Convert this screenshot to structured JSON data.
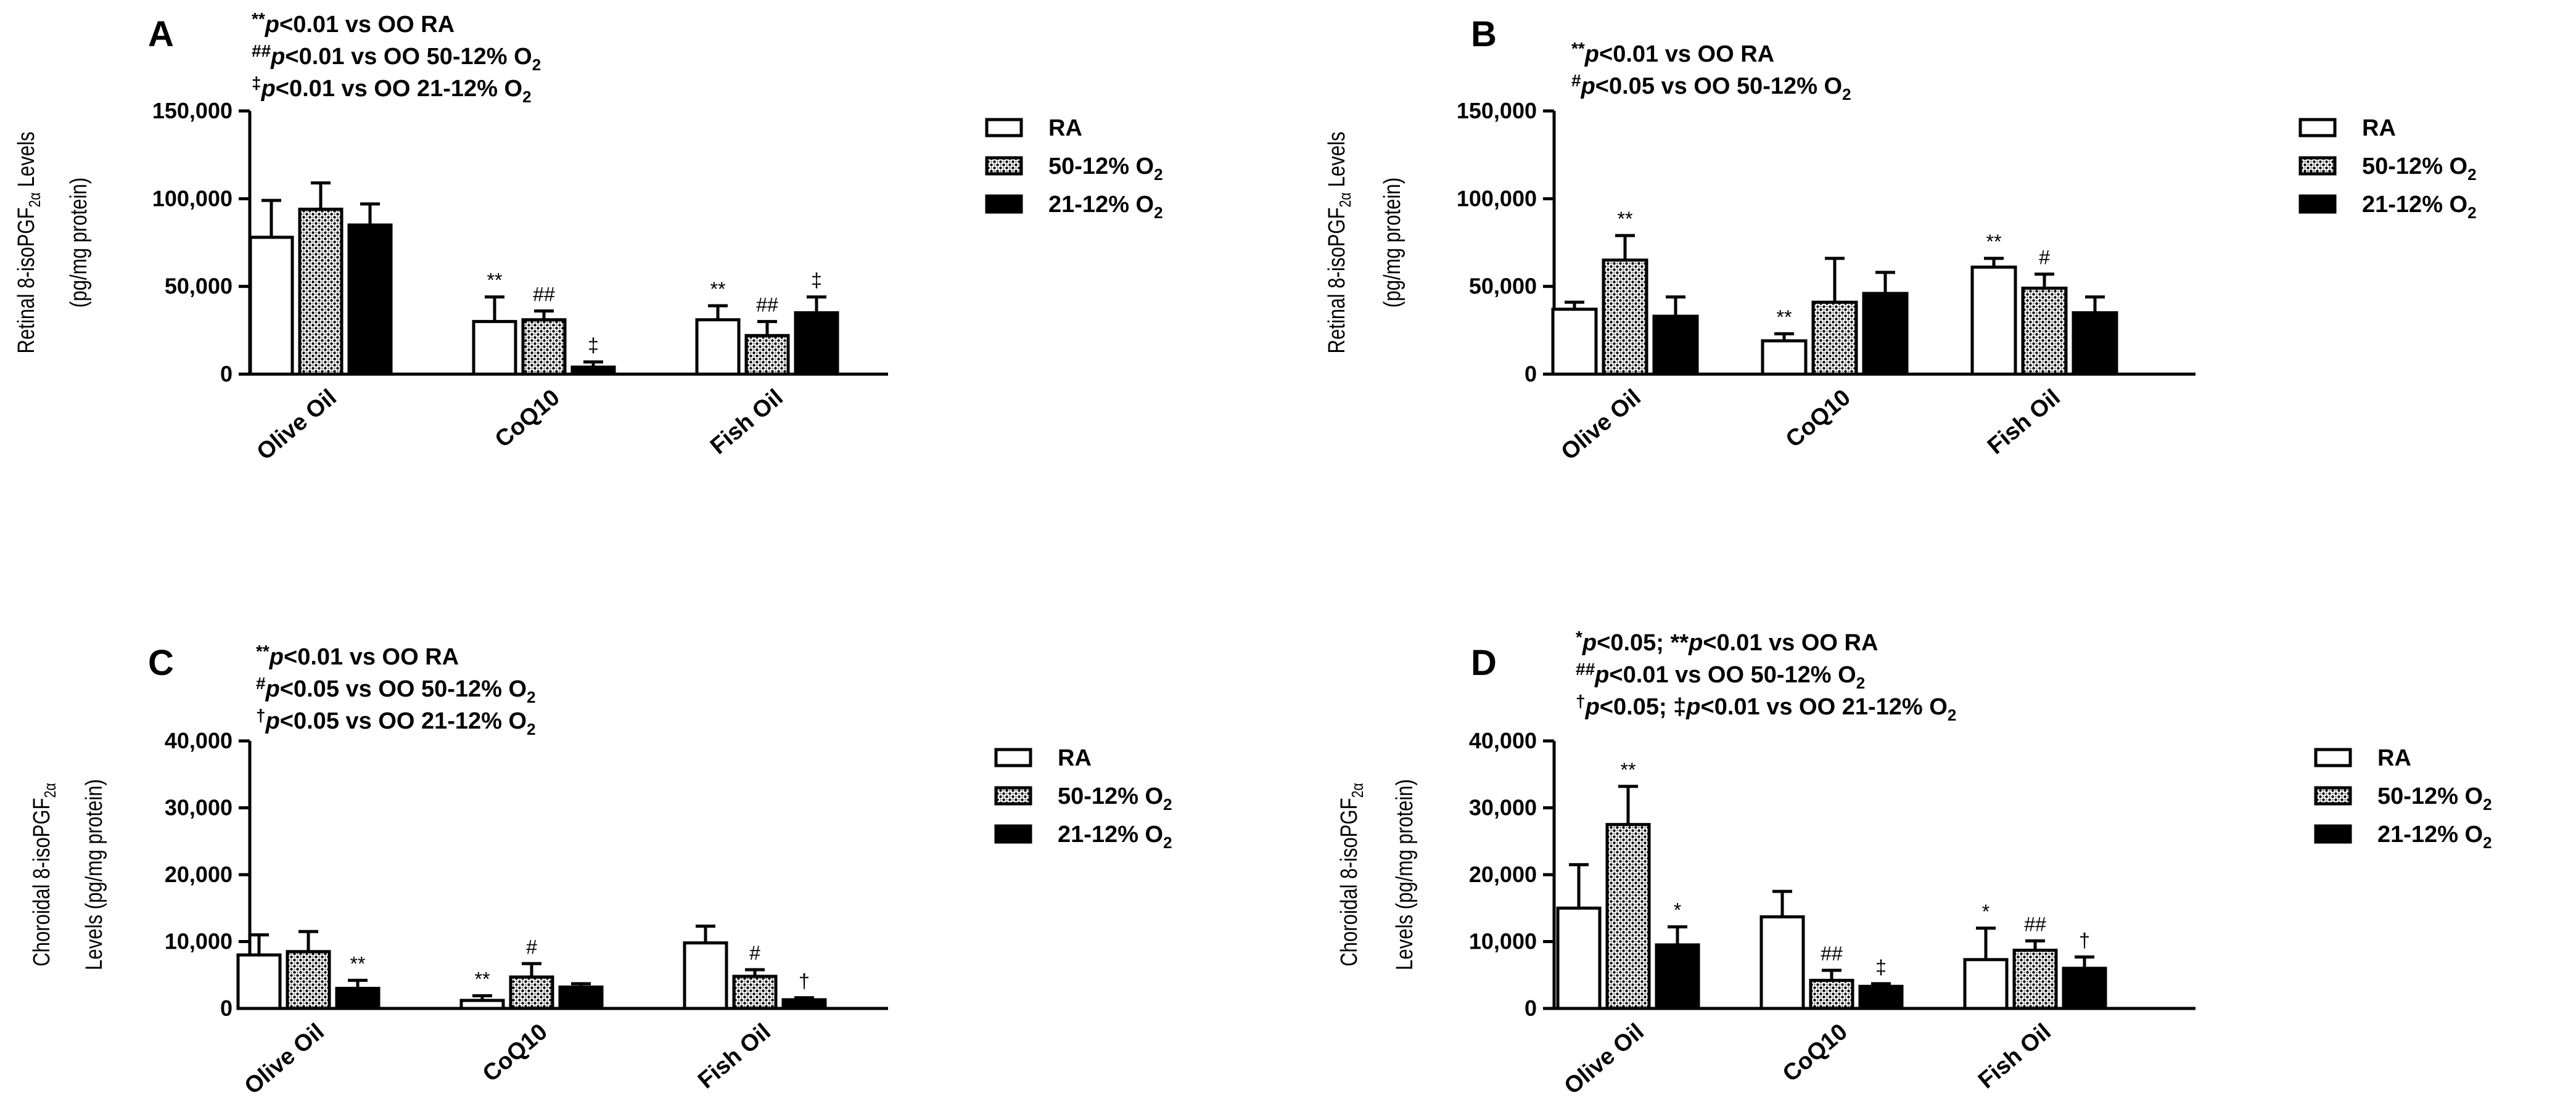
{
  "colors": {
    "ink": "#000000",
    "paper": "#ffffff"
  },
  "legend": [
    {
      "label": "RA",
      "sub": "",
      "pattern": "open"
    },
    {
      "label": "50-12% O",
      "sub": "2",
      "pattern": "dots"
    },
    {
      "label": "21-12% O",
      "sub": "2",
      "pattern": "solid"
    }
  ],
  "chart_data": [
    {
      "id": "A",
      "type": "bar",
      "title": "A",
      "notes": [
        {
          "sym": "**",
          "sig": "p",
          "text": "<0.01 vs OO RA",
          "sub": ""
        },
        {
          "sym": "##",
          "sig": "p",
          "text": "<0.01 vs OO 50-12% O",
          "sub": "2"
        },
        {
          "sym": "‡",
          "sig": "p",
          "text": "<0.01 vs OO 21-12%  O",
          "sub": "2"
        }
      ],
      "ylabel_line1": "Retinal 8-isoPGF",
      "ylabel_sub": "2α",
      "ylabel_tail": " Levels",
      "ylabel_line2": "(pg/mg protein)",
      "ylim": [
        0,
        150000
      ],
      "yticks": [
        0,
        50000,
        100000,
        150000
      ],
      "ytick_labels": [
        "0",
        "50,000",
        "100,000",
        "150,000"
      ],
      "categories": [
        "Olive Oil",
        "CoQ10",
        "Fish Oil"
      ],
      "series": [
        {
          "name": "RA",
          "values": [
            78000,
            30000,
            31000
          ],
          "errors": [
            21000,
            14000,
            8000
          ],
          "sig": [
            "",
            "**",
            "**"
          ]
        },
        {
          "name": "50-12% O2",
          "values": [
            94000,
            31000,
            22000
          ],
          "errors": [
            15000,
            5000,
            8000
          ],
          "sig": [
            "",
            "##",
            "##"
          ]
        },
        {
          "name": "21-12% O2",
          "values": [
            85000,
            4000,
            35000
          ],
          "errors": [
            12000,
            3000,
            9000
          ],
          "sig": [
            "",
            "‡",
            "‡"
          ]
        }
      ]
    },
    {
      "id": "B",
      "type": "bar",
      "title": "B",
      "notes": [
        {
          "sym": "**",
          "sig": "p",
          "text": "<0.01 vs OO RA",
          "sub": ""
        },
        {
          "sym": "#",
          "sig": "p",
          "text": "<0.05 vs OO 50-12% O",
          "sub": "2"
        }
      ],
      "ylabel_line1": "Retinal 8-isoPGF",
      "ylabel_sub": "2α",
      "ylabel_tail": " Levels",
      "ylabel_line2": "(pg/mg protein)",
      "ylim": [
        0,
        150000
      ],
      "yticks": [
        0,
        50000,
        100000,
        150000
      ],
      "ytick_labels": [
        "0",
        "50,000",
        "100,000",
        "150,000"
      ],
      "categories": [
        "Olive Oil",
        "CoQ10",
        "Fish Oil"
      ],
      "series": [
        {
          "name": "RA",
          "values": [
            37000,
            19000,
            61000
          ],
          "errors": [
            4000,
            4000,
            5000
          ],
          "sig": [
            "",
            "**",
            "**"
          ]
        },
        {
          "name": "50-12% O2",
          "values": [
            65000,
            41000,
            49000
          ],
          "errors": [
            14000,
            25000,
            8000
          ],
          "sig": [
            "**",
            "",
            "#"
          ]
        },
        {
          "name": "21-12% O2",
          "values": [
            33000,
            46000,
            35000
          ],
          "errors": [
            11000,
            12000,
            9000
          ],
          "sig": [
            "",
            "",
            ""
          ]
        }
      ]
    },
    {
      "id": "C",
      "type": "bar",
      "title": "C",
      "notes": [
        {
          "sym": "**",
          "sig": "p",
          "text": "<0.01 vs OO RA",
          "sub": ""
        },
        {
          "sym": "#",
          "sig": "p",
          "text": "<0.05 vs OO 50-12% O",
          "sub": "2"
        },
        {
          "sym": "†",
          "sig": "p",
          "text": "<0.05 vs OO 21-12%  O",
          "sub": "2"
        }
      ],
      "ylabel_line1": "Choroidal 8-isoPGF",
      "ylabel_sub": "2α",
      "ylabel_tail": "",
      "ylabel_line2": "Levels (pg/mg protein)",
      "ylim": [
        0,
        40000
      ],
      "yticks": [
        0,
        10000,
        20000,
        30000,
        40000
      ],
      "ytick_labels": [
        "0",
        "10,000",
        "20,000",
        "30,000",
        "40,000"
      ],
      "categories": [
        "Olive Oil",
        "CoQ10",
        "Fish Oil"
      ],
      "series": [
        {
          "name": "RA",
          "values": [
            8000,
            1200,
            9800
          ],
          "errors": [
            3000,
            700,
            2500
          ],
          "sig": [
            "",
            "**",
            ""
          ]
        },
        {
          "name": "50-12% O2",
          "values": [
            8500,
            4700,
            4800
          ],
          "errors": [
            3000,
            2000,
            1000
          ],
          "sig": [
            "",
            "#",
            "#"
          ]
        },
        {
          "name": "21-12% O2",
          "values": [
            3000,
            3200,
            1300
          ],
          "errors": [
            1200,
            500,
            300
          ],
          "sig": [
            "**",
            "",
            "†"
          ]
        }
      ]
    },
    {
      "id": "D",
      "type": "bar",
      "title": "D",
      "notes": [
        {
          "sym": "*",
          "sig": "p",
          "text": "<0.05; **",
          "sig2": "p",
          "text2": "<0.01 vs OO RA",
          "sub": ""
        },
        {
          "sym": "##",
          "sig": "p",
          "text": "<0.01 vs OO 50-12% O",
          "sub": "2"
        },
        {
          "sym": "†",
          "sig": "p",
          "text": "<0.05; ‡",
          "sig2": "p",
          "text2": "<0.01 vs OO 21-12%  O",
          "sub": "2"
        }
      ],
      "ylabel_line1": "Choroidal 8-isoPGF",
      "ylabel_sub": "2α",
      "ylabel_tail": "",
      "ylabel_line2": "Levels (pg/mg protein)",
      "ylim": [
        0,
        40000
      ],
      "yticks": [
        0,
        10000,
        20000,
        30000,
        40000
      ],
      "ytick_labels": [
        "0",
        "10,000",
        "20,000",
        "30,000",
        "40,000"
      ],
      "categories": [
        "Olive Oil",
        "CoQ10",
        "Fish Oil"
      ],
      "series": [
        {
          "name": "RA",
          "values": [
            15000,
            13700,
            7300
          ],
          "errors": [
            6500,
            3800,
            4700
          ],
          "sig": [
            "",
            "",
            "*"
          ]
        },
        {
          "name": "50-12% O2",
          "values": [
            27500,
            4200,
            8700
          ],
          "errors": [
            5700,
            1500,
            1400
          ],
          "sig": [
            "**",
            "##",
            "##"
          ]
        },
        {
          "name": "21-12% O2",
          "values": [
            9500,
            3300,
            6000
          ],
          "errors": [
            2700,
            400,
            1700
          ],
          "sig": [
            "*",
            "‡",
            "†"
          ]
        }
      ]
    }
  ]
}
